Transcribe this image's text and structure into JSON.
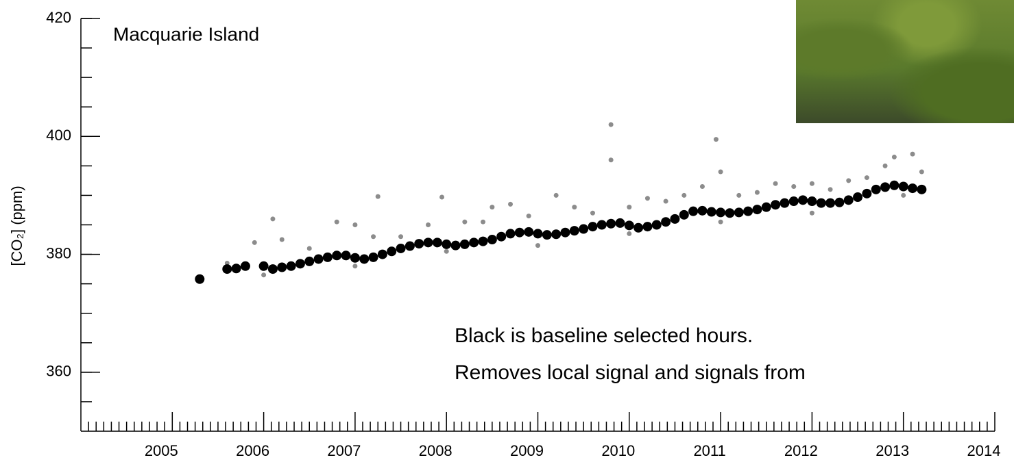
{
  "chart_data": {
    "type": "scatter",
    "title": "Macquarie Island",
    "ylabel": "[CO₂] (ppm)",
    "annotations": [
      "Black is baseline selected hours.",
      "Removes local signal and signals from"
    ],
    "xlim": [
      2004,
      2014
    ],
    "xticks": [
      2005,
      2006,
      2007,
      2008,
      2009,
      2010,
      2011,
      2012,
      2013,
      2014
    ],
    "ylim": [
      350,
      420
    ],
    "yticks": [
      360,
      380,
      400,
      420
    ],
    "series": [
      {
        "color": "#8c8c8c",
        "x": [
          2005.6,
          2005.9,
          2006.0,
          2006.1,
          2006.2,
          2006.5,
          2006.8,
          2007.0,
          2007.0,
          2007.2,
          2007.25,
          2007.5,
          2007.8,
          2007.95,
          2008.0,
          2008.2,
          2008.4,
          2008.5,
          2008.7,
          2008.9,
          2009.0,
          2009.2,
          2009.4,
          2009.6,
          2009.8,
          2009.8,
          2010.0,
          2010.0,
          2010.2,
          2010.4,
          2010.6,
          2010.8,
          2010.95,
          2011.0,
          2011.0,
          2011.2,
          2011.4,
          2011.6,
          2011.8,
          2012.0,
          2012.0,
          2012.2,
          2012.4,
          2012.6,
          2012.8,
          2012.9,
          2013.0,
          2013.1,
          2013.2
        ],
        "values": [
          378.5,
          382,
          376.5,
          386,
          382.5,
          381,
          385.5,
          385,
          378,
          383,
          389.8,
          383,
          385,
          389.7,
          380.5,
          385.5,
          385.5,
          388,
          388.5,
          386.5,
          381.5,
          390,
          388,
          387,
          402,
          396,
          388,
          383.5,
          389.5,
          389,
          390,
          391.5,
          399.5,
          394,
          385.5,
          390,
          390.5,
          392,
          391.5,
          392,
          387,
          391,
          392.5,
          393,
          395,
          396.5,
          390,
          397,
          394
        ]
      },
      {
        "color": "#000000",
        "x": [
          2005.3,
          2005.6,
          2005.7,
          2005.8,
          2006.0,
          2006.1,
          2006.2,
          2006.3,
          2006.4,
          2006.5,
          2006.6,
          2006.7,
          2006.8,
          2006.9,
          2007.0,
          2007.1,
          2007.2,
          2007.3,
          2007.4,
          2007.5,
          2007.6,
          2007.7,
          2007.8,
          2007.9,
          2008.0,
          2008.1,
          2008.2,
          2008.3,
          2008.4,
          2008.5,
          2008.6,
          2008.7,
          2008.8,
          2008.9,
          2009.0,
          2009.1,
          2009.2,
          2009.3,
          2009.4,
          2009.5,
          2009.6,
          2009.7,
          2009.8,
          2009.9,
          2010.0,
          2010.1,
          2010.2,
          2010.3,
          2010.4,
          2010.5,
          2010.6,
          2010.7,
          2010.8,
          2010.9,
          2011.0,
          2011.1,
          2011.2,
          2011.3,
          2011.4,
          2011.5,
          2011.6,
          2011.7,
          2011.8,
          2011.9,
          2012.0,
          2012.1,
          2012.2,
          2012.3,
          2012.4,
          2012.5,
          2012.6,
          2012.7,
          2012.8,
          2012.9,
          2013.0,
          2013.1,
          2013.2
        ],
        "values": [
          375.8,
          377.5,
          377.6,
          378,
          378,
          377.5,
          377.8,
          378,
          378.4,
          378.8,
          379.2,
          379.5,
          379.8,
          379.8,
          379.4,
          379.2,
          379.5,
          380,
          380.5,
          381,
          381.4,
          381.8,
          382,
          382,
          381.7,
          381.5,
          381.7,
          382,
          382.2,
          382.5,
          383,
          383.5,
          383.7,
          383.8,
          383.5,
          383.3,
          383.4,
          383.7,
          384,
          384.3,
          384.7,
          385,
          385.2,
          385.3,
          384.9,
          384.5,
          384.7,
          385,
          385.5,
          386,
          386.7,
          387.3,
          387.4,
          387.2,
          387.1,
          387,
          387.1,
          387.3,
          387.6,
          388,
          388.4,
          388.7,
          389,
          389.2,
          389,
          388.7,
          388.7,
          388.8,
          389.2,
          389.7,
          390.3,
          391,
          391.4,
          391.7,
          391.5,
          391.2,
          391
        ]
      }
    ]
  }
}
